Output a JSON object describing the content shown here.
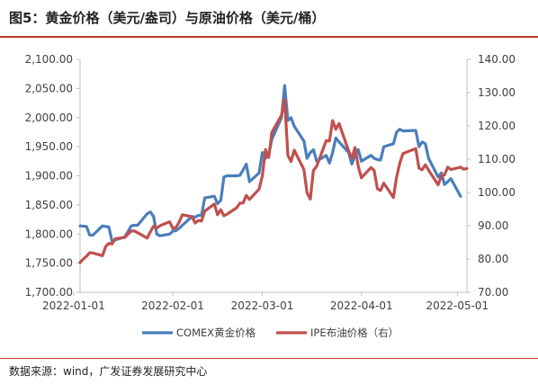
{
  "title": "图5：黄金价格（美元/盎司）与原油价格（美元/桶）",
  "source": "数据来源：wind，广发证券发展研究中心",
  "chart_data": {
    "type": "line",
    "xlabel": "",
    "ylabel": "",
    "x_ticks": [
      "2022-01-01",
      "2022-02-01",
      "2022-03-01",
      "2022-04-01",
      "2022-05-01"
    ],
    "x_range": [
      "2022-01-03",
      "2022-05-04"
    ],
    "y_left": {
      "ticks": [
        "1,700.00",
        "1,750.00",
        "1,800.00",
        "1,850.00",
        "1,900.00",
        "1,950.00",
        "2,000.00",
        "2,050.00",
        "2,100.00"
      ],
      "min": 1700,
      "max": 2100
    },
    "y_right": {
      "ticks": [
        "70.00",
        "80.00",
        "90.00",
        "100.00",
        "110.00",
        "120.00",
        "130.00",
        "140.00"
      ],
      "min": 70,
      "max": 140
    },
    "grid": false,
    "legend_position": "bottom",
    "series": [
      {
        "name": "COMEX黄金价格",
        "color": "#4a7ebb",
        "axis": "left",
        "points": [
          [
            "2022-01-03",
            1814
          ],
          [
            "2022-01-05",
            1813
          ],
          [
            "2022-01-06",
            1798
          ],
          [
            "2022-01-07",
            1798
          ],
          [
            "2022-01-10",
            1814
          ],
          [
            "2022-01-12",
            1812
          ],
          [
            "2022-01-13",
            1788
          ],
          [
            "2022-01-14",
            1790
          ],
          [
            "2022-01-17",
            1795
          ],
          [
            "2022-01-19",
            1814
          ],
          [
            "2022-01-20",
            1815
          ],
          [
            "2022-01-21",
            1815
          ],
          [
            "2022-01-24",
            1835
          ],
          [
            "2022-01-25",
            1838
          ],
          [
            "2022-01-26",
            1830
          ],
          [
            "2022-01-27",
            1800
          ],
          [
            "2022-01-28",
            1797
          ],
          [
            "2022-01-31",
            1800
          ],
          [
            "2022-02-01",
            1805
          ],
          [
            "2022-02-02",
            1806
          ],
          [
            "2022-02-03",
            1810
          ],
          [
            "2022-02-04",
            1815
          ],
          [
            "2022-02-07",
            1830
          ],
          [
            "2022-02-08",
            1829
          ],
          [
            "2022-02-09",
            1832
          ],
          [
            "2022-02-10",
            1832
          ],
          [
            "2022-02-11",
            1862
          ],
          [
            "2022-02-14",
            1865
          ],
          [
            "2022-02-15",
            1852
          ],
          [
            "2022-02-16",
            1858
          ],
          [
            "2022-02-17",
            1898
          ],
          [
            "2022-02-18",
            1900
          ],
          [
            "2022-02-21",
            1900
          ],
          [
            "2022-02-22",
            1901
          ],
          [
            "2022-02-23",
            1910
          ],
          [
            "2022-02-24",
            1920
          ],
          [
            "2022-02-25",
            1890
          ],
          [
            "2022-02-28",
            1905
          ],
          [
            "2022-03-01",
            1940
          ],
          [
            "2022-03-02",
            1930
          ],
          [
            "2022-03-03",
            1936
          ],
          [
            "2022-03-04",
            1963
          ],
          [
            "2022-03-07",
            2000
          ],
          [
            "2022-03-08",
            2055
          ],
          [
            "2022-03-09",
            1995
          ],
          [
            "2022-03-10",
            2000
          ],
          [
            "2022-03-11",
            1985
          ],
          [
            "2022-03-14",
            1960
          ],
          [
            "2022-03-15",
            1930
          ],
          [
            "2022-03-16",
            1940
          ],
          [
            "2022-03-17",
            1945
          ],
          [
            "2022-03-18",
            1925
          ],
          [
            "2022-03-21",
            1935
          ],
          [
            "2022-03-22",
            1922
          ],
          [
            "2022-03-23",
            1940
          ],
          [
            "2022-03-24",
            1965
          ],
          [
            "2022-03-25",
            1958
          ],
          [
            "2022-03-28",
            1940
          ],
          [
            "2022-03-29",
            1920
          ],
          [
            "2022-03-30",
            1935
          ],
          [
            "2022-03-31",
            1945
          ],
          [
            "2022-04-01",
            1925
          ],
          [
            "2022-04-04",
            1935
          ],
          [
            "2022-04-05",
            1930
          ],
          [
            "2022-04-06",
            1928
          ],
          [
            "2022-04-07",
            1927
          ],
          [
            "2022-04-08",
            1950
          ],
          [
            "2022-04-11",
            1955
          ],
          [
            "2022-04-12",
            1975
          ],
          [
            "2022-04-13",
            1980
          ],
          [
            "2022-04-14",
            1977
          ],
          [
            "2022-04-18",
            1978
          ],
          [
            "2022-04-19",
            1950
          ],
          [
            "2022-04-20",
            1958
          ],
          [
            "2022-04-21",
            1955
          ],
          [
            "2022-04-22",
            1930
          ],
          [
            "2022-04-25",
            1898
          ],
          [
            "2022-04-26",
            1905
          ],
          [
            "2022-04-27",
            1885
          ],
          [
            "2022-04-28",
            1890
          ],
          [
            "2022-04-29",
            1895
          ],
          [
            "2022-05-02",
            1865
          ]
        ]
      },
      {
        "name": "IPE布油价格（右）",
        "color": "#c0504d",
        "axis": "right",
        "points": [
          [
            "2022-01-03",
            78.9
          ],
          [
            "2022-01-04",
            80.0
          ],
          [
            "2022-01-05",
            80.8
          ],
          [
            "2022-01-06",
            81.9
          ],
          [
            "2022-01-07",
            81.8
          ],
          [
            "2022-01-10",
            81.0
          ],
          [
            "2022-01-11",
            83.7
          ],
          [
            "2022-01-12",
            84.7
          ],
          [
            "2022-01-13",
            84.5
          ],
          [
            "2022-01-14",
            86.1
          ],
          [
            "2022-01-17",
            86.5
          ],
          [
            "2022-01-18",
            87.5
          ],
          [
            "2022-01-19",
            88.4
          ],
          [
            "2022-01-20",
            88.4
          ],
          [
            "2022-01-21",
            87.9
          ],
          [
            "2022-01-24",
            86.3
          ],
          [
            "2022-01-25",
            88.2
          ],
          [
            "2022-01-26",
            89.9
          ],
          [
            "2022-01-27",
            89.3
          ],
          [
            "2022-01-28",
            90.0
          ],
          [
            "2022-01-31",
            91.2
          ],
          [
            "2022-02-01",
            89.2
          ],
          [
            "2022-02-02",
            89.5
          ],
          [
            "2022-02-03",
            91.1
          ],
          [
            "2022-02-04",
            93.3
          ],
          [
            "2022-02-07",
            92.7
          ],
          [
            "2022-02-08",
            90.8
          ],
          [
            "2022-02-09",
            91.6
          ],
          [
            "2022-02-10",
            91.4
          ],
          [
            "2022-02-11",
            94.4
          ],
          [
            "2022-02-14",
            96.5
          ],
          [
            "2022-02-15",
            93.3
          ],
          [
            "2022-02-16",
            94.8
          ],
          [
            "2022-02-17",
            92.97
          ],
          [
            "2022-02-18",
            93.5
          ],
          [
            "2022-02-21",
            95.4
          ],
          [
            "2022-02-22",
            96.8
          ],
          [
            "2022-02-23",
            96.8
          ],
          [
            "2022-02-24",
            99.1
          ],
          [
            "2022-02-25",
            97.9
          ],
          [
            "2022-02-28",
            100.99
          ],
          [
            "2022-03-01",
            104.97
          ],
          [
            "2022-03-02",
            112.9
          ],
          [
            "2022-03-03",
            110.5
          ],
          [
            "2022-03-04",
            118.1
          ],
          [
            "2022-03-07",
            123.2
          ],
          [
            "2022-03-08",
            127.98
          ],
          [
            "2022-03-09",
            111.1
          ],
          [
            "2022-03-10",
            109.3
          ],
          [
            "2022-03-11",
            112.7
          ],
          [
            "2022-03-14",
            106.9
          ],
          [
            "2022-03-15",
            99.9
          ],
          [
            "2022-03-16",
            98.0
          ],
          [
            "2022-03-17",
            106.6
          ],
          [
            "2022-03-18",
            107.9
          ],
          [
            "2022-03-21",
            115.6
          ],
          [
            "2022-03-22",
            115.5
          ],
          [
            "2022-03-23",
            121.6
          ],
          [
            "2022-03-24",
            119.0
          ],
          [
            "2022-03-25",
            120.7
          ],
          [
            "2022-03-28",
            112.5
          ],
          [
            "2022-03-29",
            110.2
          ],
          [
            "2022-03-30",
            113.5
          ],
          [
            "2022-03-31",
            107.9
          ],
          [
            "2022-04-01",
            104.4
          ],
          [
            "2022-04-04",
            107.5
          ],
          [
            "2022-04-05",
            106.6
          ],
          [
            "2022-04-06",
            101.1
          ],
          [
            "2022-04-07",
            100.6
          ],
          [
            "2022-04-08",
            102.8
          ],
          [
            "2022-04-11",
            98.5
          ],
          [
            "2022-04-12",
            104.6
          ],
          [
            "2022-04-13",
            108.8
          ],
          [
            "2022-04-14",
            111.7
          ],
          [
            "2022-04-18",
            113.2
          ],
          [
            "2022-04-19",
            107.3
          ],
          [
            "2022-04-20",
            106.8
          ],
          [
            "2022-04-21",
            108.3
          ],
          [
            "2022-04-22",
            106.7
          ],
          [
            "2022-04-25",
            102.3
          ],
          [
            "2022-04-26",
            104.99
          ],
          [
            "2022-04-27",
            105.3
          ],
          [
            "2022-04-28",
            107.6
          ],
          [
            "2022-04-29",
            106.9
          ],
          [
            "2022-05-02",
            107.6
          ],
          [
            "2022-05-03",
            107.0
          ],
          [
            "2022-05-04",
            107.2
          ]
        ]
      }
    ]
  }
}
